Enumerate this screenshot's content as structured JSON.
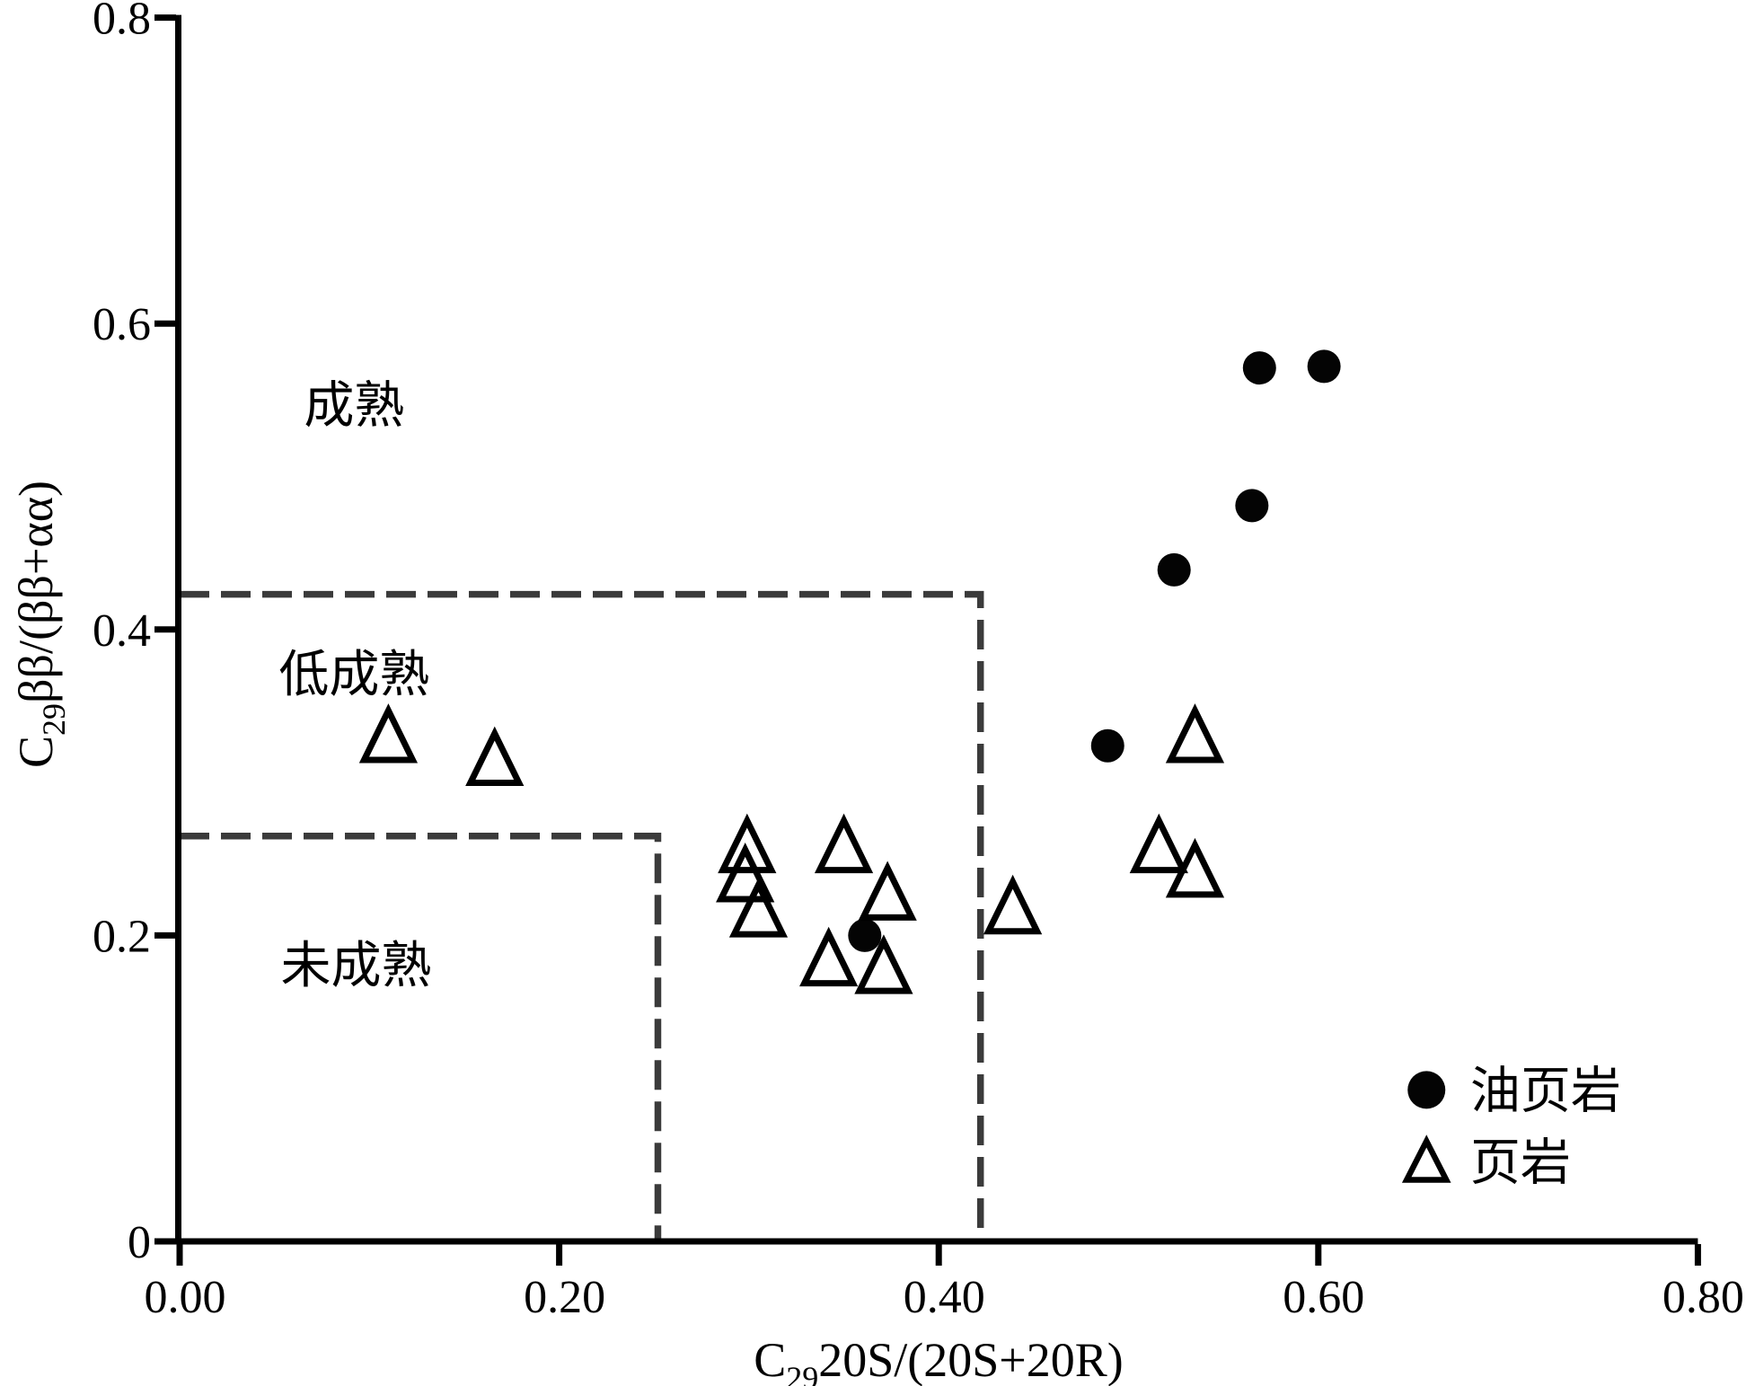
{
  "chart_data": {
    "type": "scatter",
    "title": "",
    "xlabel": "C29 20S/(20S+20R)",
    "ylabel": "C29 ββ/(ββ+αα)",
    "x_axis": {
      "label_prefix": "C",
      "label_sub": "29",
      "label_rest": "20S/(20S+20R)",
      "min": 0,
      "max": 0.8,
      "ticks": [
        {
          "v": 0.0,
          "label": "0.00"
        },
        {
          "v": 0.2,
          "label": "0.20"
        },
        {
          "v": 0.4,
          "label": "0.40"
        },
        {
          "v": 0.6,
          "label": "0.60"
        },
        {
          "v": 0.8,
          "label": "0.80"
        }
      ]
    },
    "y_axis": {
      "label_prefix": "C",
      "label_sub": "29",
      "label_rest": "ββ/(ββ+αα)",
      "min": 0,
      "max": 0.8,
      "ticks": [
        {
          "v": 0.0,
          "label": "0"
        },
        {
          "v": 0.2,
          "label": "0.2"
        },
        {
          "v": 0.4,
          "label": "0.4"
        },
        {
          "v": 0.6,
          "label": "0.6"
        },
        {
          "v": 0.8,
          "label": "0.8"
        }
      ]
    },
    "series": [
      {
        "name": "油页岩",
        "marker": "circle",
        "points": [
          [
            0.569,
            0.571
          ],
          [
            0.603,
            0.572
          ],
          [
            0.565,
            0.481
          ],
          [
            0.524,
            0.439
          ],
          [
            0.489,
            0.324
          ],
          [
            0.361,
            0.2
          ]
        ]
      },
      {
        "name": "页岩",
        "marker": "triangle",
        "points": [
          [
            0.11,
            0.33
          ],
          [
            0.166,
            0.315
          ],
          [
            0.299,
            0.258
          ],
          [
            0.298,
            0.239
          ],
          [
            0.305,
            0.216
          ],
          [
            0.35,
            0.258
          ],
          [
            0.373,
            0.227
          ],
          [
            0.342,
            0.184
          ],
          [
            0.371,
            0.179
          ],
          [
            0.439,
            0.218
          ],
          [
            0.535,
            0.33
          ],
          [
            0.516,
            0.258
          ],
          [
            0.535,
            0.242
          ]
        ]
      }
    ],
    "boundaries": [
      {
        "name": "mature-boundary",
        "points": [
          [
            0,
            0.423
          ],
          [
            0.422,
            0.423
          ],
          [
            0.422,
            0
          ]
        ]
      },
      {
        "name": "immature-boundary",
        "points": [
          [
            0,
            0.265
          ],
          [
            0.252,
            0.265
          ],
          [
            0.252,
            0
          ]
        ]
      }
    ],
    "regions": [
      {
        "label": "成熟",
        "x": 0.092,
        "y": 0.547
      },
      {
        "label": "低成熟",
        "x": 0.092,
        "y": 0.371
      },
      {
        "label": "未成熟",
        "x": 0.093,
        "y": 0.181
      }
    ],
    "legend": {
      "label_x": 0.68,
      "items": [
        {
          "label": "油页岩",
          "marker": "circle",
          "x": 0.657,
          "y": 0.099
        },
        {
          "label": "页岩",
          "marker": "triangle",
          "x": 0.657,
          "y": 0.052
        }
      ]
    },
    "colors": {
      "axis": "#000000",
      "dashed": "#3b3b3b",
      "marker_fill": "#040404",
      "background": "#ffffff"
    }
  }
}
